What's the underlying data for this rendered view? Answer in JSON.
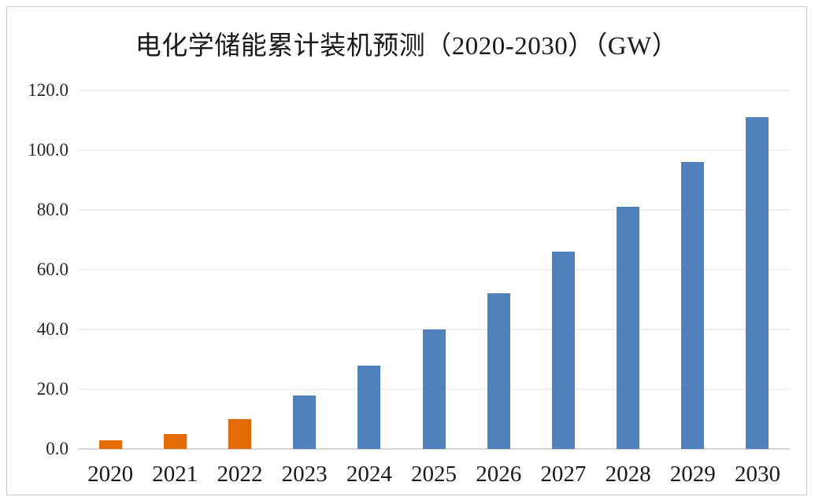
{
  "chart": {
    "title": "电化学储能累计装机预测（2020-2030）（GW）"
  },
  "chart_data": {
    "type": "bar",
    "title": "电化学储能累计装机预测（2020-2030）（GW）",
    "categories": [
      "2020",
      "2021",
      "2022",
      "2023",
      "2024",
      "2025",
      "2026",
      "2027",
      "2028",
      "2029",
      "2030"
    ],
    "values": [
      3,
      5,
      10,
      18,
      28,
      40,
      52,
      66,
      81,
      96,
      111
    ],
    "bar_colors": [
      "#e36c09",
      "#e36c09",
      "#e36c09",
      "#4f81bd",
      "#4f81bd",
      "#4f81bd",
      "#4f81bd",
      "#4f81bd",
      "#4f81bd",
      "#4f81bd",
      "#4f81bd"
    ],
    "colors": {
      "highlight_orange": "#e36c09",
      "series_blue": "#4f81bd",
      "gridline": "#e0e0e0",
      "frame_border": "#c9c9c9"
    },
    "xlabel": "",
    "ylabel": "",
    "ylim": [
      0,
      120
    ],
    "ytick_step": 20,
    "yticks": [
      "120.0",
      "100.0",
      "80.0",
      "60.0",
      "40.0",
      "20.0",
      "0.0"
    ],
    "grid": true,
    "legend": false
  }
}
